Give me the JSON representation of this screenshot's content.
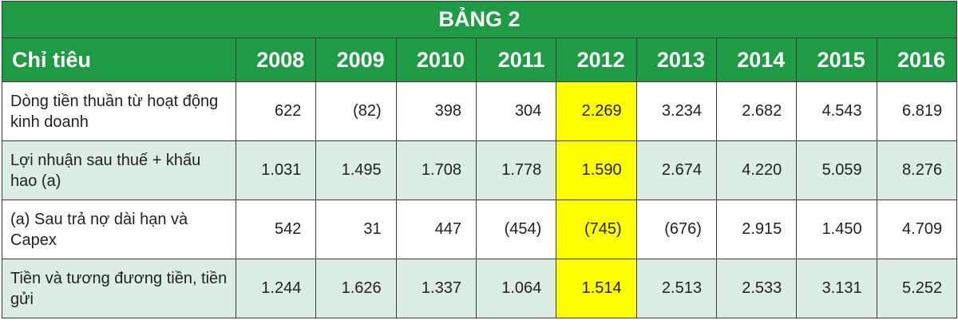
{
  "title": "BẢNG 2",
  "header": [
    "Chỉ tiêu",
    "2008",
    "2009",
    "2010",
    "2011",
    "2012",
    "2013",
    "2014",
    "2015",
    "2016"
  ],
  "highlight_column": "2012",
  "rows": [
    {
      "label": "Dòng tiền thuần từ hoạt động kinh doanh",
      "values": [
        "622",
        "(82)",
        "398",
        "304",
        "2.269",
        "3.234",
        "2.682",
        "4.543",
        "6.819"
      ]
    },
    {
      "label": "Lợi nhuận sau thuế + khấu hao (a)",
      "values": [
        "1.031",
        "1.495",
        "1.708",
        "1.778",
        "1.590",
        "2.674",
        "4.220",
        "5.059",
        "8.276"
      ]
    },
    {
      "label": "(a) Sau trả nợ dài hạn và Capex",
      "values": [
        "542",
        "31",
        "447",
        "(454)",
        "(745)",
        "(676)",
        "2.915",
        "1.450",
        "4.709"
      ]
    },
    {
      "label": "Tiền và tương đương tiền, tiền gửi",
      "values": [
        "1.244",
        "1.626",
        "1.337",
        "1.064",
        "1.514",
        "2.513",
        "2.533",
        "3.131",
        "5.252"
      ]
    }
  ]
}
